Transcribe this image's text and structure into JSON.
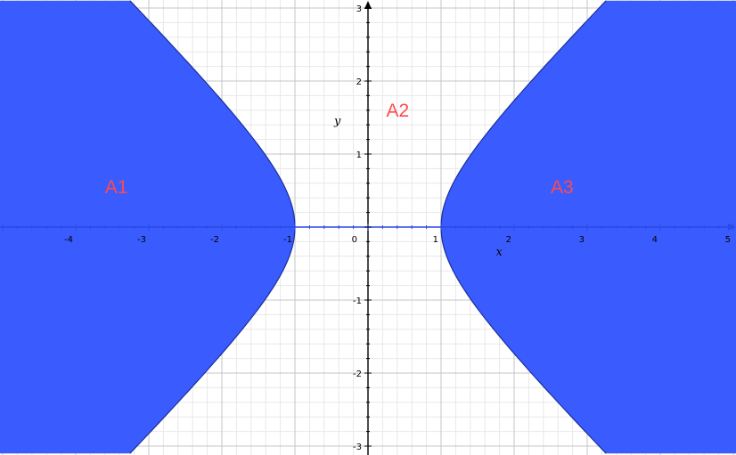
{
  "chart_data": {
    "type": "area",
    "xlabel": "x",
    "ylabel": "y",
    "xlim": [
      -5,
      5
    ],
    "ylim": [
      -3,
      3
    ],
    "x_ticks": [
      -4,
      -3,
      -2,
      -1,
      0,
      1,
      2,
      3,
      4,
      5
    ],
    "x_tick_labels": [
      "-4",
      "-3",
      "-2",
      "-1",
      "0",
      "1",
      "2",
      "3",
      "4",
      "5"
    ],
    "y_ticks": [
      3,
      2,
      1,
      -1,
      -2,
      -3
    ],
    "y_tick_labels": [
      "3",
      "2",
      "1",
      "-1",
      "-2",
      "-3"
    ],
    "grid": true,
    "minor_grid_step": 0.2,
    "boundary_curve": "x^2 - y^2 = 1",
    "shaded_region": "x^2 - y^2 > 1",
    "regions": [
      {
        "label": "A1",
        "x": -3.6,
        "y": 0.55
      },
      {
        "label": "A2",
        "x": 0.25,
        "y": 1.6
      },
      {
        "label": "A3",
        "x": 2.5,
        "y": 0.55
      }
    ],
    "colors": {
      "fill": "#3a5cff",
      "curve": "#1a2f99",
      "axis": "#000000",
      "axis_arrow": "#2b49e6",
      "major_grid": "#c4c4c4",
      "minor_grid": "#e8e8e8",
      "region_label": "#ff4a4a"
    }
  }
}
